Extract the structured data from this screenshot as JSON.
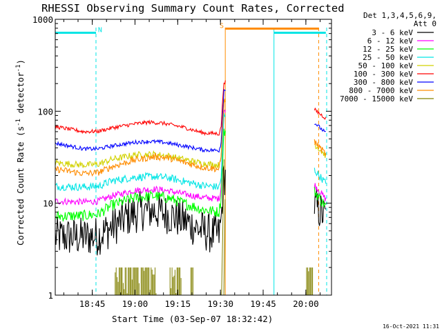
{
  "chart_data": {
    "type": "line",
    "title": "RHESSI Observing Summary Count Rates, Corrected",
    "xlabel": "Start Time (03-Sep-07 18:32:42)",
    "ylabel_parts": [
      "Corrected Count Rate (s",
      "-1",
      " detector",
      "-1",
      ")"
    ],
    "yscale": "log",
    "ylim": [
      1,
      1000
    ],
    "xlim_min": [
      0,
      97
    ],
    "x_ticks": [
      {
        "min": 13,
        "label": "18:45"
      },
      {
        "min": 28,
        "label": "19:00"
      },
      {
        "min": 43,
        "label": "19:15"
      },
      {
        "min": 58,
        "label": "19:30"
      },
      {
        "min": 73,
        "label": "19:45"
      },
      {
        "min": 88,
        "label": "20:00"
      }
    ],
    "y_ticks": [
      {
        "value": 1,
        "label": "1"
      },
      {
        "value": 10,
        "label": "10"
      },
      {
        "value": 100,
        "label": "100"
      },
      {
        "value": 1000,
        "label": "1000"
      }
    ],
    "legend_header": [
      "Det 1,3,4,5,6,9,",
      "Att 0"
    ],
    "legend_placement": "right",
    "footer_date": "16-Oct-2021 11:31",
    "flags": [
      {
        "label": "N",
        "color": "#00e5e5",
        "segments": [
          [
            0,
            14.3
          ],
          [
            76.8,
            95
          ]
        ],
        "label_min": 15.5
      },
      {
        "label": "S",
        "color": "#ff8c00",
        "segments": [
          [
            59.7,
            92.5
          ]
        ],
        "label_min": 58.2
      }
    ],
    "vlines": [
      {
        "min": 14.3,
        "color": "#00e5e5",
        "dash": true
      },
      {
        "min": 59.7,
        "color": "#ff8c00",
        "dash": false
      },
      {
        "min": 76.8,
        "color": "#00e5e5",
        "dash": false
      },
      {
        "min": 92.5,
        "color": "#ff8c00",
        "dash": true
      },
      {
        "min": 95.3,
        "color": "#00e5e5",
        "dash": true
      }
    ],
    "series": [
      {
        "name": "3 - 6 keV",
        "color": "#000000",
        "noise": 0.22,
        "pts": [
          [
            0,
            4.3
          ],
          [
            10,
            4.3
          ],
          [
            15,
            4.4
          ],
          [
            20,
            5.5
          ],
          [
            25,
            7
          ],
          [
            30,
            8.2
          ],
          [
            35,
            8.3
          ],
          [
            40,
            7.5
          ],
          [
            45,
            6.5
          ],
          [
            50,
            5.3
          ],
          [
            55,
            4.6
          ],
          [
            57.5,
            4.5
          ],
          [
            58.2,
            6
          ],
          [
            59.2,
            20
          ],
          [
            91,
            9.5
          ],
          [
            95,
            7
          ]
        ]
      },
      {
        "name": "6 - 12 keV",
        "color": "#ff00ff",
        "noise": 0.06,
        "pts": [
          [
            0,
            10.5
          ],
          [
            10,
            10.3
          ],
          [
            15,
            10.5
          ],
          [
            20,
            12
          ],
          [
            28,
            13.8
          ],
          [
            35,
            14.2
          ],
          [
            40,
            13.6
          ],
          [
            45,
            12.6
          ],
          [
            52,
            11.5
          ],
          [
            57.5,
            11.2
          ],
          [
            58.2,
            14
          ],
          [
            59.2,
            100
          ],
          [
            91,
            16
          ],
          [
            95,
            11
          ]
        ]
      },
      {
        "name": "12 - 25 keV",
        "color": "#00ff00",
        "noise": 0.1,
        "pts": [
          [
            0,
            7.2
          ],
          [
            10,
            7.3
          ],
          [
            15,
            7.6
          ],
          [
            20,
            9.5
          ],
          [
            28,
            11.5
          ],
          [
            35,
            12
          ],
          [
            40,
            11.3
          ],
          [
            45,
            10
          ],
          [
            52,
            8.5
          ],
          [
            57.5,
            8
          ],
          [
            58.2,
            11
          ],
          [
            59.2,
            60
          ],
          [
            91,
            13.5
          ],
          [
            95,
            9.2
          ]
        ]
      },
      {
        "name": "25 - 50 keV",
        "color": "#00e5e5",
        "noise": 0.07,
        "pts": [
          [
            0,
            15.2
          ],
          [
            10,
            15
          ],
          [
            15,
            15.2
          ],
          [
            20,
            17.5
          ],
          [
            28,
            19.2
          ],
          [
            35,
            19.5
          ],
          [
            40,
            18.8
          ],
          [
            45,
            17.3
          ],
          [
            52,
            15.5
          ],
          [
            57.5,
            15
          ],
          [
            58.2,
            18
          ],
          [
            59.2,
            90
          ],
          [
            91,
            23
          ],
          [
            95,
            16.5
          ]
        ]
      },
      {
        "name": "50 - 100 keV",
        "color": "#d2d200",
        "noise": 0.06,
        "pts": [
          [
            0,
            27.5
          ],
          [
            10,
            26
          ],
          [
            15,
            26.5
          ],
          [
            20,
            30
          ],
          [
            28,
            33.5
          ],
          [
            35,
            34
          ],
          [
            40,
            32.5
          ],
          [
            45,
            30
          ],
          [
            52,
            27
          ],
          [
            57.5,
            26
          ],
          [
            58.2,
            32
          ],
          [
            59.2,
            130
          ],
          [
            91,
            44
          ],
          [
            95,
            33
          ]
        ]
      },
      {
        "name": "100 - 300 keV",
        "color": "#ff0000",
        "noise": 0.035,
        "pts": [
          [
            0,
            68
          ],
          [
            10,
            60
          ],
          [
            15,
            60.5
          ],
          [
            20,
            66
          ],
          [
            28,
            73
          ],
          [
            33,
            76
          ],
          [
            38,
            74
          ],
          [
            45,
            67
          ],
          [
            52,
            58
          ],
          [
            57.5,
            57
          ],
          [
            58.2,
            66
          ],
          [
            59.2,
            210
          ],
          [
            91,
            104
          ],
          [
            95,
            84
          ]
        ]
      },
      {
        "name": "300 - 800 keV",
        "color": "#0000ff",
        "noise": 0.035,
        "pts": [
          [
            0,
            45
          ],
          [
            10,
            39
          ],
          [
            15,
            39
          ],
          [
            20,
            42
          ],
          [
            28,
            46
          ],
          [
            33,
            47
          ],
          [
            38,
            46
          ],
          [
            45,
            42
          ],
          [
            52,
            38
          ],
          [
            57.5,
            37.5
          ],
          [
            58.2,
            44
          ],
          [
            59.2,
            170
          ],
          [
            91,
            75
          ],
          [
            95,
            58
          ]
        ]
      },
      {
        "name": "800 - 7000 keV",
        "color": "#ff8c00",
        "noise": 0.06,
        "pts": [
          [
            0,
            23.5
          ],
          [
            10,
            21
          ],
          [
            15,
            21.5
          ],
          [
            20,
            25
          ],
          [
            28,
            29.5
          ],
          [
            35,
            32
          ],
          [
            40,
            31
          ],
          [
            45,
            28
          ],
          [
            52,
            24.5
          ],
          [
            57.5,
            23.5
          ],
          [
            58.2,
            30
          ],
          [
            59.2,
            130
          ],
          [
            91,
            47
          ],
          [
            95,
            34
          ]
        ]
      },
      {
        "name": "7000 - 15000 keV",
        "color": "#808000",
        "noise": 0,
        "pts": []
      }
    ]
  }
}
